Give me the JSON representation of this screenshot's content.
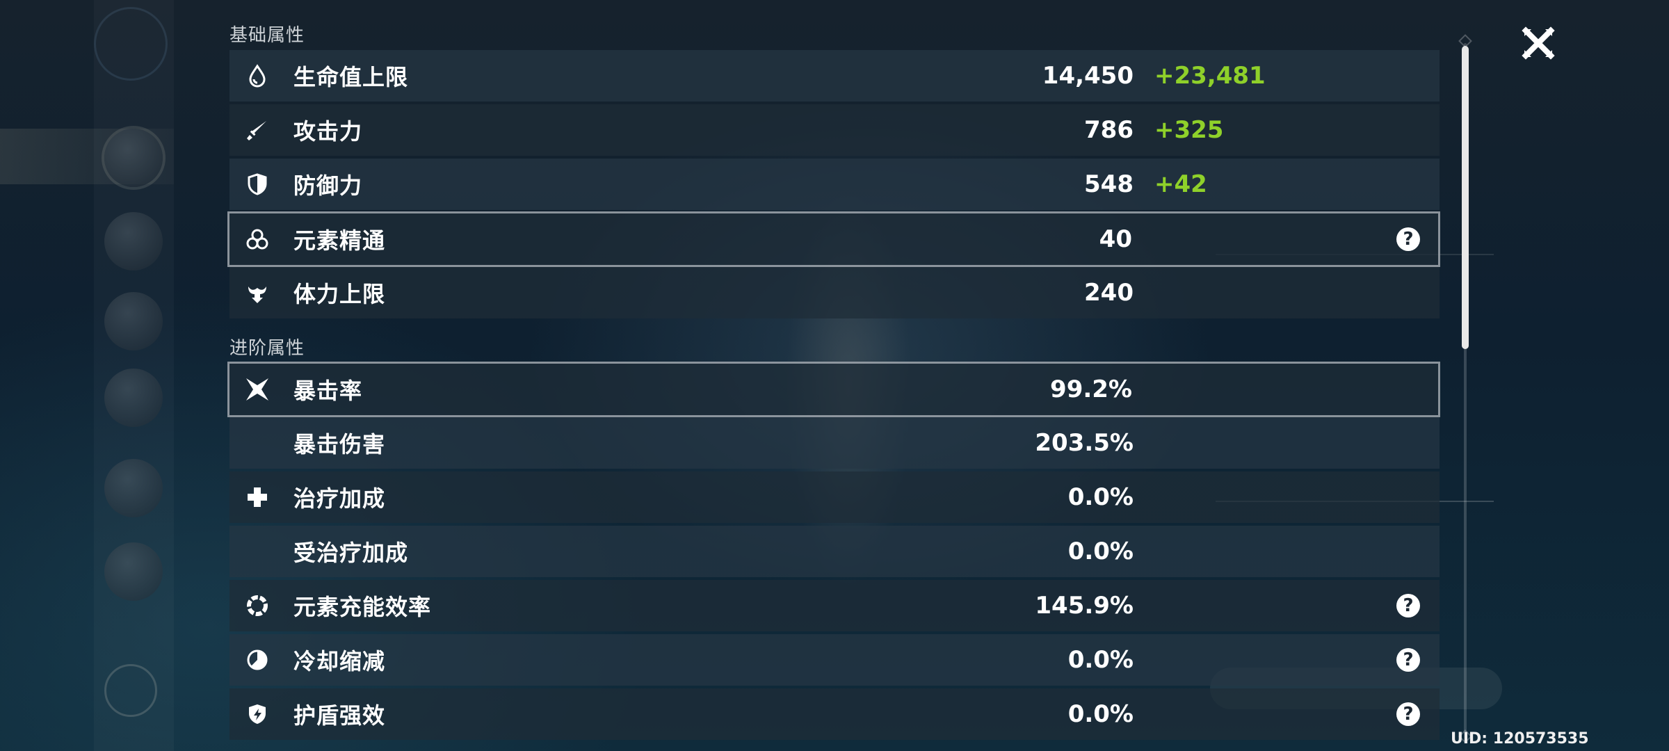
{
  "sections": {
    "basic_title": "基础属性",
    "advanced_title": "进阶属性"
  },
  "basic_stats": [
    {
      "icon": "hp-drop-icon",
      "label": "生命值上限",
      "value": "14,450",
      "bonus": "+23,481"
    },
    {
      "icon": "sword-icon",
      "label": "攻击力",
      "value": "786",
      "bonus": "+325"
    },
    {
      "icon": "shield-half-icon",
      "label": "防御力",
      "value": "548",
      "bonus": "+42"
    },
    {
      "icon": "trinity-circles-icon",
      "label": "元素精通",
      "value": "40",
      "has_help": true
    },
    {
      "icon": "stamina-icon",
      "label": "体力上限",
      "value": "240"
    }
  ],
  "advanced_stats": [
    {
      "icon": "crit-star-icon",
      "label": "暴击率",
      "value": "99.2%"
    },
    {
      "icon": "",
      "label": "暴击伤害",
      "value": "203.5%"
    },
    {
      "icon": "healing-cross-icon",
      "label": "治疗加成",
      "value": "0.0%"
    },
    {
      "icon": "",
      "label": "受治疗加成",
      "value": "0.0%"
    },
    {
      "icon": "energy-ring-icon",
      "label": "元素充能效率",
      "value": "145.9%",
      "has_help": true
    },
    {
      "icon": "cooldown-icon",
      "label": "冷却缩减",
      "value": "0.0%",
      "has_help": true
    },
    {
      "icon": "shield-strength-icon",
      "label": "护盾强效",
      "value": "0.0%",
      "has_help": true
    }
  ],
  "help_glyph": "?",
  "uid": "UID: 120573535",
  "colors": {
    "bonus_green": "#8fd12a",
    "row_bg": "#1e2c38",
    "text": "#ffffff"
  }
}
